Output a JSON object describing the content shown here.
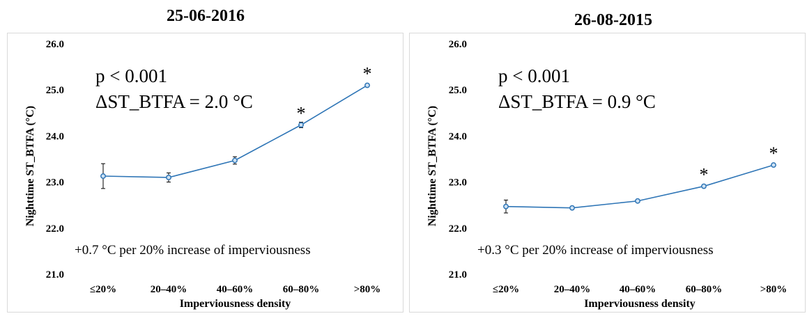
{
  "chart_data": [
    {
      "type": "line",
      "title": "25-06-2016",
      "xlabel": "Imperviousness density",
      "ylabel": "Nighttime ST_BTFA (°C)",
      "categories": [
        "≤20%",
        "20–40%",
        "40–60%",
        "60–80%",
        ">80%"
      ],
      "values": [
        23.13,
        23.1,
        23.47,
        24.24,
        25.1
      ],
      "error": [
        0.27,
        0.1,
        0.08,
        0.06,
        0.03
      ],
      "significant": [
        "",
        "",
        "",
        "*",
        "*"
      ],
      "ylim": [
        21.0,
        26.0
      ],
      "yticks": [
        "21.0",
        "22.0",
        "23.0",
        "24.0",
        "25.0",
        "26.0"
      ],
      "annotations": {
        "p_value": "p < 0.001",
        "delta": "ΔST_BTFA = 2.0 °C",
        "note": "+0.7 °C per 20% increase of imperviousness"
      },
      "color": "#2e75b6",
      "grid": false
    },
    {
      "type": "line",
      "title": "26-08-2015",
      "xlabel": "Imperviousness density",
      "ylabel": "Nighttime ST_BTFA (°C)",
      "categories": [
        "≤20%",
        "20–40%",
        "40–60%",
        "60–80%",
        ">80%"
      ],
      "values": [
        22.47,
        22.44,
        22.59,
        22.91,
        23.37
      ],
      "error": [
        0.14,
        0.03,
        0.03,
        0.03,
        0.03
      ],
      "significant": [
        "",
        "",
        "",
        "*",
        "*"
      ],
      "ylim": [
        21.0,
        26.0
      ],
      "yticks": [
        "21.0",
        "22.0",
        "23.0",
        "24.0",
        "25.0",
        "26.0"
      ],
      "annotations": {
        "p_value": "p < 0.001",
        "delta": "ΔST_BTFA = 0.9 °C",
        "note": "+0.3 °C per 20% increase of imperviousness"
      },
      "color": "#2e75b6",
      "grid": false
    }
  ]
}
